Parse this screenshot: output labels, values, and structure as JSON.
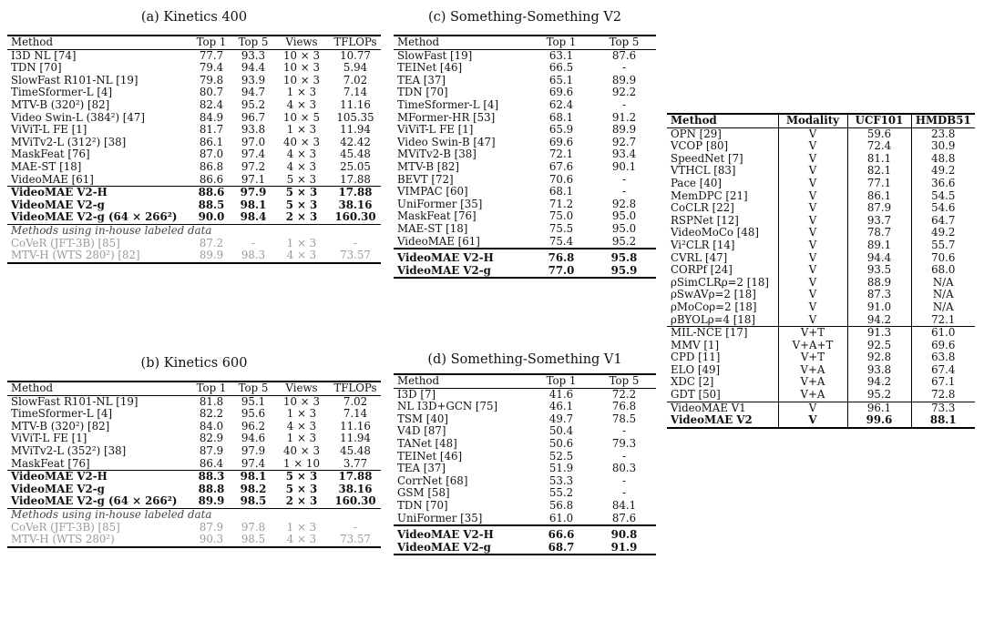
{
  "kinetics400": {
    "caption": "(a) Kinetics 400",
    "headers": [
      "Method",
      "Top 1",
      "Top 5",
      "Views",
      "TFLOPs"
    ],
    "rows": [
      [
        "I3D NL [74]",
        "77.7",
        "93.3",
        "10 × 3",
        "10.77"
      ],
      [
        "TDN [70]",
        "79.4",
        "94.4",
        "10 × 3",
        "5.94"
      ],
      [
        "SlowFast R101-NL [19]",
        "79.8",
        "93.9",
        "10 × 3",
        "7.02"
      ],
      [
        "TimeSformer-L [4]",
        "80.7",
        "94.7",
        "1 × 3",
        "7.14"
      ],
      [
        "MTV-B (320²) [82]",
        "82.4",
        "95.2",
        "4 × 3",
        "11.16"
      ],
      [
        "Video Swin-L (384²) [47]",
        "84.9",
        "96.7",
        "10 × 5",
        "105.35"
      ],
      [
        "ViViT-L FE [1]",
        "81.7",
        "93.8",
        "1 × 3",
        "11.94"
      ],
      [
        "MViTv2-L (312²) [38]",
        "86.1",
        "97.0",
        "40 × 3",
        "42.42"
      ],
      [
        "MaskFeat [76]",
        "87.0",
        "97.4",
        "4 × 3",
        "45.48"
      ],
      [
        "MAE-ST [18]",
        "86.8",
        "97.2",
        "4 × 3",
        "25.05"
      ],
      [
        "VideoMAE [61]",
        "86.6",
        "97.1",
        "5 × 3",
        "17.88"
      ]
    ],
    "ours": [
      [
        "VideoMAE V2-H",
        "88.6",
        "97.9",
        "5 × 3",
        "17.88"
      ],
      [
        "VideoMAE V2-g",
        "88.5",
        "98.1",
        "5 × 3",
        "38.16"
      ],
      [
        "VideoMAE V2-g (64 × 266²)",
        "90.0",
        "98.4",
        "2 × 3",
        "160.30"
      ]
    ],
    "inhouse_label": "Methods using in-house labeled data",
    "inhouse": [
      [
        "CoVeR (JFT-3B) [85]",
        "87.2",
        "-",
        "1 × 3",
        "-"
      ],
      [
        "MTV-H (WTS 280²) [82]",
        "89.9",
        "98.3",
        "4 × 3",
        "73.57"
      ]
    ]
  },
  "kinetics600": {
    "caption": "(b) Kinetics 600",
    "headers": [
      "Method",
      "Top 1",
      "Top 5",
      "Views",
      "TFLOPs"
    ],
    "rows": [
      [
        "SlowFast R101-NL [19]",
        "81.8",
        "95.1",
        "10 × 3",
        "7.02"
      ],
      [
        "TimeSformer-L [4]",
        "82.2",
        "95.6",
        "1 × 3",
        "7.14"
      ],
      [
        "MTV-B (320²) [82]",
        "84.0",
        "96.2",
        "4 × 3",
        "11.16"
      ],
      [
        "ViViT-L FE [1]",
        "82.9",
        "94.6",
        "1 × 3",
        "11.94"
      ],
      [
        "MViTv2-L (352²) [38]",
        "87.9",
        "97.9",
        "40 × 3",
        "45.48"
      ],
      [
        "MaskFeat [76]",
        "86.4",
        "97.4",
        "1 × 10",
        "3.77"
      ]
    ],
    "ours": [
      [
        "VideoMAE V2-H",
        "88.3",
        "98.1",
        "5 × 3",
        "17.88"
      ],
      [
        "VideoMAE V2-g",
        "88.8",
        "98.2",
        "5 × 3",
        "38.16"
      ],
      [
        "VideoMAE V2-g (64 × 266²)",
        "89.9",
        "98.5",
        "2 × 3",
        "160.30"
      ]
    ],
    "inhouse_label": "Methods using in-house labeled data",
    "inhouse": [
      [
        "CoVeR (JFT-3B) [85]",
        "87.9",
        "97.8",
        "1 × 3",
        "-"
      ],
      [
        "MTV-H (WTS 280²)",
        "90.3",
        "98.5",
        "4 × 3",
        "73.57"
      ]
    ]
  },
  "ssv2": {
    "caption": "(c) Something-Something V2",
    "headers": [
      "Method",
      "Top 1",
      "Top 5"
    ],
    "rows": [
      [
        "SlowFast [19]",
        "63.1",
        "87.6"
      ],
      [
        "TEINet [46]",
        "66.5",
        "-"
      ],
      [
        "TEA [37]",
        "65.1",
        "89.9"
      ],
      [
        "TDN [70]",
        "69.6",
        "92.2"
      ],
      [
        "TimeSformer-L [4]",
        "62.4",
        "-"
      ],
      [
        "MFormer-HR [53]",
        "68.1",
        "91.2"
      ],
      [
        "ViViT-L FE [1]",
        "65.9",
        "89.9"
      ],
      [
        "Video Swin-B [47]",
        "69.6",
        "92.7"
      ],
      [
        "MViTv2-B [38]",
        "72.1",
        "93.4"
      ],
      [
        "MTV-B [82]",
        "67.6",
        "90.1"
      ],
      [
        "BEVT [72]",
        "70.6",
        "-"
      ],
      [
        "VIMPAC [60]",
        "68.1",
        "-"
      ],
      [
        "UniFormer [35]",
        "71.2",
        "92.8"
      ],
      [
        "MaskFeat [76]",
        "75.0",
        "95.0"
      ],
      [
        "MAE-ST [18]",
        "75.5",
        "95.0"
      ],
      [
        "VideoMAE [61]",
        "75.4",
        "95.2"
      ]
    ],
    "ours": [
      [
        "VideoMAE V2-H",
        "76.8",
        "95.8"
      ],
      [
        "VideoMAE V2-g",
        "77.0",
        "95.9"
      ]
    ]
  },
  "ssv1": {
    "caption": "(d) Something-Something V1",
    "headers": [
      "Method",
      "Top 1",
      "Top 5"
    ],
    "rows": [
      [
        "I3D [7]",
        "41.6",
        "72.2"
      ],
      [
        "NL I3D+GCN [75]",
        "46.1",
        "76.8"
      ],
      [
        "TSM [40]",
        "49.7",
        "78.5"
      ],
      [
        "V4D [87]",
        "50.4",
        "-"
      ],
      [
        "TANet [48]",
        "50.6",
        "79.3"
      ],
      [
        "TEINet [46]",
        "52.5",
        "-"
      ],
      [
        "TEA [37]",
        "51.9",
        "80.3"
      ],
      [
        "CorrNet [68]",
        "53.3",
        "-"
      ],
      [
        "GSM [58]",
        "55.2",
        "-"
      ],
      [
        "TDN [70]",
        "56.8",
        "84.1"
      ],
      [
        "UniFormer [35]",
        "61.0",
        "87.6"
      ]
    ],
    "ours": [
      [
        "VideoMAE V2-H",
        "66.6",
        "90.8"
      ],
      [
        "VideoMAE V2-g",
        "68.7",
        "91.9"
      ]
    ]
  },
  "ucf_hmdb": {
    "headers": [
      "Method",
      "Modality",
      "UCF101",
      "HMDB51"
    ],
    "group1": [
      [
        "OPN [29]",
        "V",
        "59.6",
        "23.8"
      ],
      [
        "VCOP [80]",
        "V",
        "72.4",
        "30.9"
      ],
      [
        "SpeedNet [7]",
        "V",
        "81.1",
        "48.8"
      ],
      [
        "VTHCL [83]",
        "V",
        "82.1",
        "49.2"
      ],
      [
        "Pace [40]",
        "V",
        "77.1",
        "36.6"
      ],
      [
        "MemDPC [21]",
        "V",
        "86.1",
        "54.5"
      ],
      [
        "CoCLR [22]",
        "V",
        "87.9",
        "54.6"
      ],
      [
        "RSPNet [12]",
        "V",
        "93.7",
        "64.7"
      ],
      [
        "VideoMoCo [48]",
        "V",
        "78.7",
        "49.2"
      ],
      [
        "Vi²CLR [14]",
        "V",
        "89.1",
        "55.7"
      ],
      [
        "CVRL [47]",
        "V",
        "94.4",
        "70.6"
      ],
      [
        "CORPf [24]",
        "V",
        "93.5",
        "68.0"
      ],
      [
        "ρSimCLRρ=2 [18]",
        "V",
        "88.9",
        "N/A"
      ],
      [
        "ρSwAVρ=2 [18]",
        "V",
        "87.3",
        "N/A"
      ],
      [
        "ρMoCoρ=2 [18]",
        "V",
        "91.0",
        "N/A"
      ],
      [
        "ρBYOLρ=4 [18]",
        "V",
        "94.2",
        "72.1"
      ]
    ],
    "group2": [
      [
        "MIL-NCE [17]",
        "V+T",
        "91.3",
        "61.0"
      ],
      [
        "MMV [1]",
        "V+A+T",
        "92.5",
        "69.6"
      ],
      [
        "CPD [11]",
        "V+T",
        "92.8",
        "63.8"
      ],
      [
        "ELO [49]",
        "V+A",
        "93.8",
        "67.4"
      ],
      [
        "XDC [2]",
        "V+A",
        "94.2",
        "67.1"
      ],
      [
        "GDT [50]",
        "V+A",
        "95.2",
        "72.8"
      ]
    ],
    "group3": [
      [
        "VideoMAE V1",
        "V",
        "96.1",
        "73.3"
      ],
      [
        "VideoMAE V2",
        "V",
        "99.6",
        "88.1"
      ]
    ]
  }
}
